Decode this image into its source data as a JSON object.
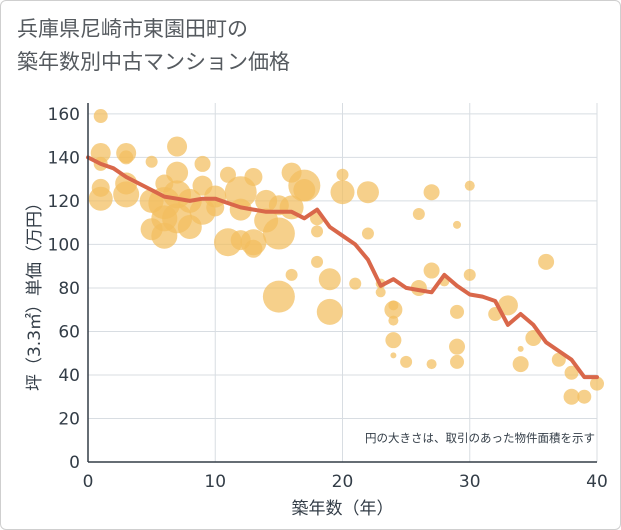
{
  "chart_data": {
    "type": "scatter",
    "title_lines": [
      "兵庫県尼崎市東園田町の",
      "築年数別中古マンション価格"
    ],
    "xlabel": "築年数（年）",
    "ylabel": "坪（3.3㎡）単価（万円）",
    "annotation": "円の大きさは、取引のあった物件面積を示す",
    "xlim": [
      0,
      40
    ],
    "ylim": [
      0,
      165
    ],
    "x_ticks": [
      0,
      10,
      20,
      30,
      40
    ],
    "y_ticks": [
      0,
      20,
      40,
      60,
      80,
      100,
      120,
      140,
      160
    ],
    "grid": true,
    "colors": {
      "bubble": "#f2be5e",
      "line": "#d9674a",
      "grid": "#d8dde2",
      "axis": "#333d47",
      "text": "#333d47"
    },
    "series": [
      {
        "kind": "bubble",
        "points": [
          {
            "x": 1,
            "y": 159,
            "r": 7
          },
          {
            "x": 1,
            "y": 142,
            "r": 10
          },
          {
            "x": 1,
            "y": 137,
            "r": 7
          },
          {
            "x": 1,
            "y": 126,
            "r": 9
          },
          {
            "x": 1,
            "y": 121,
            "r": 12
          },
          {
            "x": 3,
            "y": 142,
            "r": 10
          },
          {
            "x": 3,
            "y": 140,
            "r": 7
          },
          {
            "x": 3,
            "y": 128,
            "r": 11
          },
          {
            "x": 3,
            "y": 123,
            "r": 13
          },
          {
            "x": 5,
            "y": 138,
            "r": 6
          },
          {
            "x": 5,
            "y": 120,
            "r": 12
          },
          {
            "x": 5,
            "y": 107,
            "r": 11
          },
          {
            "x": 6,
            "y": 128,
            "r": 9
          },
          {
            "x": 6,
            "y": 119,
            "r": 16
          },
          {
            "x": 6,
            "y": 112,
            "r": 13
          },
          {
            "x": 6,
            "y": 104,
            "r": 13
          },
          {
            "x": 7,
            "y": 145,
            "r": 10
          },
          {
            "x": 7,
            "y": 133,
            "r": 11
          },
          {
            "x": 7,
            "y": 123,
            "r": 14
          },
          {
            "x": 7,
            "y": 112,
            "r": 15
          },
          {
            "x": 8,
            "y": 120,
            "r": 12
          },
          {
            "x": 8,
            "y": 108,
            "r": 12
          },
          {
            "x": 9,
            "y": 137,
            "r": 8
          },
          {
            "x": 9,
            "y": 127,
            "r": 10
          },
          {
            "x": 9,
            "y": 115,
            "r": 13
          },
          {
            "x": 10,
            "y": 122,
            "r": 11
          },
          {
            "x": 10,
            "y": 117,
            "r": 9
          },
          {
            "x": 11,
            "y": 132,
            "r": 8
          },
          {
            "x": 11,
            "y": 101,
            "r": 14
          },
          {
            "x": 12,
            "y": 124,
            "r": 16
          },
          {
            "x": 12,
            "y": 116,
            "r": 11
          },
          {
            "x": 12,
            "y": 102,
            "r": 10
          },
          {
            "x": 13,
            "y": 131,
            "r": 9
          },
          {
            "x": 13,
            "y": 101,
            "r": 13
          },
          {
            "x": 13,
            "y": 98,
            "r": 9
          },
          {
            "x": 14,
            "y": 120,
            "r": 11
          },
          {
            "x": 14,
            "y": 111,
            "r": 12
          },
          {
            "x": 15,
            "y": 118,
            "r": 10
          },
          {
            "x": 15,
            "y": 105,
            "r": 16
          },
          {
            "x": 15,
            "y": 76,
            "r": 16
          },
          {
            "x": 16,
            "y": 133,
            "r": 10
          },
          {
            "x": 16,
            "y": 117,
            "r": 12
          },
          {
            "x": 16,
            "y": 86,
            "r": 6
          },
          {
            "x": 17,
            "y": 127,
            "r": 16
          },
          {
            "x": 17,
            "y": 125,
            "r": 11
          },
          {
            "x": 18,
            "y": 112,
            "r": 7
          },
          {
            "x": 18,
            "y": 92,
            "r": 6
          },
          {
            "x": 18,
            "y": 106,
            "r": 6
          },
          {
            "x": 19,
            "y": 84,
            "r": 11
          },
          {
            "x": 19,
            "y": 69,
            "r": 13
          },
          {
            "x": 20,
            "y": 124,
            "r": 12
          },
          {
            "x": 20,
            "y": 132,
            "r": 6
          },
          {
            "x": 21,
            "y": 82,
            "r": 6
          },
          {
            "x": 22,
            "y": 124,
            "r": 11
          },
          {
            "x": 22,
            "y": 105,
            "r": 6
          },
          {
            "x": 23,
            "y": 82,
            "r": 5
          },
          {
            "x": 23,
            "y": 78,
            "r": 5
          },
          {
            "x": 24,
            "y": 72,
            "r": 5
          },
          {
            "x": 24,
            "y": 70,
            "r": 9
          },
          {
            "x": 24,
            "y": 65,
            "r": 5
          },
          {
            "x": 24,
            "y": 56,
            "r": 8
          },
          {
            "x": 24,
            "y": 49,
            "r": 3
          },
          {
            "x": 25,
            "y": 46,
            "r": 6
          },
          {
            "x": 26,
            "y": 114,
            "r": 6
          },
          {
            "x": 26,
            "y": 80,
            "r": 8
          },
          {
            "x": 27,
            "y": 124,
            "r": 8
          },
          {
            "x": 27,
            "y": 88,
            "r": 8
          },
          {
            "x": 27,
            "y": 45,
            "r": 5
          },
          {
            "x": 28,
            "y": 83,
            "r": 5
          },
          {
            "x": 29,
            "y": 109,
            "r": 4
          },
          {
            "x": 29,
            "y": 69,
            "r": 7
          },
          {
            "x": 29,
            "y": 53,
            "r": 8
          },
          {
            "x": 29,
            "y": 46,
            "r": 7
          },
          {
            "x": 30,
            "y": 127,
            "r": 5
          },
          {
            "x": 30,
            "y": 86,
            "r": 6
          },
          {
            "x": 32,
            "y": 68,
            "r": 7
          },
          {
            "x": 33,
            "y": 72,
            "r": 10
          },
          {
            "x": 34,
            "y": 52,
            "r": 3
          },
          {
            "x": 34,
            "y": 45,
            "r": 8
          },
          {
            "x": 35,
            "y": 57,
            "r": 8
          },
          {
            "x": 36,
            "y": 92,
            "r": 8
          },
          {
            "x": 37,
            "y": 47,
            "r": 7
          },
          {
            "x": 38,
            "y": 41,
            "r": 7
          },
          {
            "x": 38,
            "y": 30,
            "r": 8
          },
          {
            "x": 39,
            "y": 30,
            "r": 7
          },
          {
            "x": 40,
            "y": 36,
            "r": 7
          }
        ]
      },
      {
        "kind": "line",
        "x": [
          0,
          1,
          2,
          3,
          4,
          5,
          6,
          7,
          8,
          9,
          10,
          11,
          12,
          13,
          14,
          15,
          16,
          17,
          18,
          19,
          20,
          21,
          22,
          23,
          24,
          25,
          26,
          27,
          28,
          29,
          30,
          31,
          32,
          33,
          34,
          35,
          36,
          37,
          38,
          39,
          40
        ],
        "y": [
          140,
          137,
          135,
          131,
          128,
          125,
          122,
          121,
          120,
          121,
          121,
          119,
          117,
          116,
          115,
          115,
          115,
          112,
          116,
          108,
          104,
          100,
          93,
          81,
          84,
          80,
          79,
          78,
          86,
          81,
          77,
          76,
          74,
          63,
          68,
          63,
          55,
          51,
          47,
          39,
          39
        ]
      }
    ]
  }
}
